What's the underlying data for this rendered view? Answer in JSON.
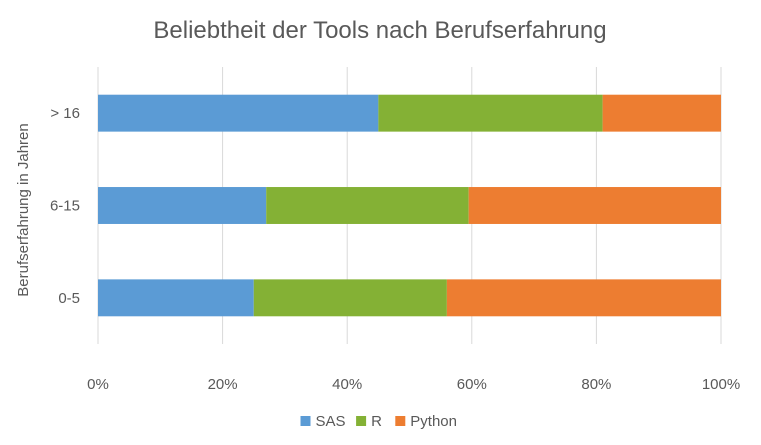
{
  "chart_data": {
    "type": "bar",
    "orientation": "horizontal",
    "stacked": "percent",
    "title": "Beliebtheit der Tools nach Berufserfahrung",
    "xlabel": "",
    "ylabel": "Berufserfahrung in Jahren",
    "categories": [
      "0-5",
      "6-15",
      "> 16"
    ],
    "series": [
      {
        "name": "SAS",
        "color": "#5b9bd5",
        "values": [
          25,
          27,
          45
        ]
      },
      {
        "name": "R",
        "color": "#84b135",
        "values": [
          31,
          32.5,
          36
        ]
      },
      {
        "name": "Python",
        "color": "#ed7d31",
        "values": [
          44,
          40.5,
          19
        ]
      }
    ],
    "xlim": [
      0,
      100
    ],
    "xticks": [
      "0%",
      "20%",
      "40%",
      "60%",
      "80%",
      "100%"
    ],
    "grid": "vertical",
    "legend": "bottom"
  }
}
